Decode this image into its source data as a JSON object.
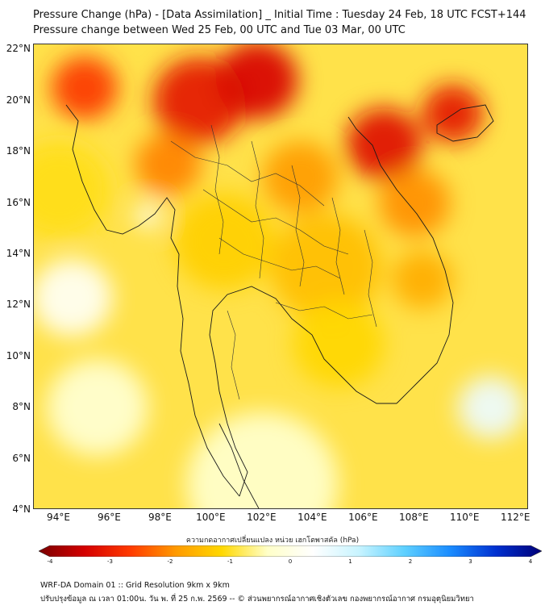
{
  "title_line1": "Pressure Change (hPa) - [Data Assimilation] _ Initial Time : Tuesday 24 Feb, 18 UTC FCST+144",
  "title_line2": "Pressure change between Wed 25 Feb, 00 UTC and Tue 03 Mar, 00 UTC",
  "map": {
    "lon_range": [
      93,
      112.5
    ],
    "lat_range": [
      4,
      22.2
    ],
    "lat_ticks": [
      {
        "value": 22,
        "label": "22°N"
      },
      {
        "value": 20,
        "label": "20°N"
      },
      {
        "value": 18,
        "label": "18°N"
      },
      {
        "value": 16,
        "label": "16°N"
      },
      {
        "value": 14,
        "label": "14°N"
      },
      {
        "value": 12,
        "label": "12°N"
      },
      {
        "value": 10,
        "label": "10°N"
      },
      {
        "value": 8,
        "label": "8°N"
      },
      {
        "value": 6,
        "label": "6°N"
      },
      {
        "value": 4,
        "label": "4°N"
      }
    ],
    "lon_ticks": [
      {
        "value": 94,
        "label": "94°E"
      },
      {
        "value": 96,
        "label": "96°E"
      },
      {
        "value": 98,
        "label": "98°E"
      },
      {
        "value": 100,
        "label": "100°E"
      },
      {
        "value": 102,
        "label": "102°E"
      },
      {
        "value": 104,
        "label": "104°E"
      },
      {
        "value": 106,
        "label": "106°E"
      },
      {
        "value": 108,
        "label": "108°E"
      },
      {
        "value": 110,
        "label": "110°E"
      },
      {
        "value": 112,
        "label": "112°E"
      }
    ],
    "field_blobs": [
      {
        "lon": 95.0,
        "lat": 20.5,
        "r": 1.3,
        "value": -2.6
      },
      {
        "lon": 99.5,
        "lat": 20.0,
        "r": 1.8,
        "value": -3.0
      },
      {
        "lon": 101.8,
        "lat": 20.8,
        "r": 1.6,
        "value": -3.2
      },
      {
        "lon": 98.3,
        "lat": 17.5,
        "r": 1.3,
        "value": -2.0
      },
      {
        "lon": 103.5,
        "lat": 17.0,
        "r": 1.5,
        "value": -1.8
      },
      {
        "lon": 106.8,
        "lat": 18.3,
        "r": 1.5,
        "value": -3.1
      },
      {
        "lon": 109.5,
        "lat": 19.5,
        "r": 1.2,
        "value": -3.0
      },
      {
        "lon": 108.0,
        "lat": 16.0,
        "r": 1.4,
        "value": -1.9
      },
      {
        "lon": 108.3,
        "lat": 13.0,
        "r": 1.2,
        "value": -1.6
      },
      {
        "lon": 104.5,
        "lat": 13.5,
        "r": 2.2,
        "value": -1.4
      },
      {
        "lon": 105.0,
        "lat": 10.5,
        "r": 1.8,
        "value": -1.1
      },
      {
        "lon": 100.5,
        "lat": 14.5,
        "r": 2.0,
        "value": -1.2
      },
      {
        "lon": 94.0,
        "lat": 16.5,
        "r": 2.0,
        "value": -1.0
      },
      {
        "lon": 97.5,
        "lat": 15.5,
        "r": 0.5,
        "value": 0.4
      },
      {
        "lon": 94.5,
        "lat": 12.3,
        "r": 1.6,
        "value": 0.25
      },
      {
        "lon": 111.0,
        "lat": 8.0,
        "r": 1.3,
        "value": 0.6
      },
      {
        "lon": 95.5,
        "lat": 8.0,
        "r": 2.0,
        "value": -0.2
      },
      {
        "lon": 102.0,
        "lat": 5.0,
        "r": 3.0,
        "value": -0.3
      }
    ]
  },
  "colorbar": {
    "label": "ความกดอากาศเปลี่ยนแปลง หน่วย เฮกโตพาสคัล (hPa)",
    "min": -4,
    "max": 4,
    "tick_labels": [
      "-4",
      "-3",
      "-2",
      "-1",
      "0",
      "1",
      "2",
      "3",
      "4"
    ],
    "colors": [
      "#7a0000",
      "#d40000",
      "#ff3a00",
      "#ff9a00",
      "#ffd800",
      "#ffffc8",
      "#ffffff",
      "#c8f4ff",
      "#5ed0ff",
      "#1a8cff",
      "#0030d0",
      "#000078"
    ]
  },
  "footer_line1": "WRF-DA Domain 01 :: Grid Resolution 9km x 9km",
  "footer_line2": "ปรับปรุงข้อมูล ณ เวลา 01:00น. วัน พ. ที่ 25 ก.พ. 2569 -- © ส่วนพยากรณ์อากาศเชิงตัวเลข กองพยากรณ์อากาศ กรมอุตุนิยมวิทยา"
}
